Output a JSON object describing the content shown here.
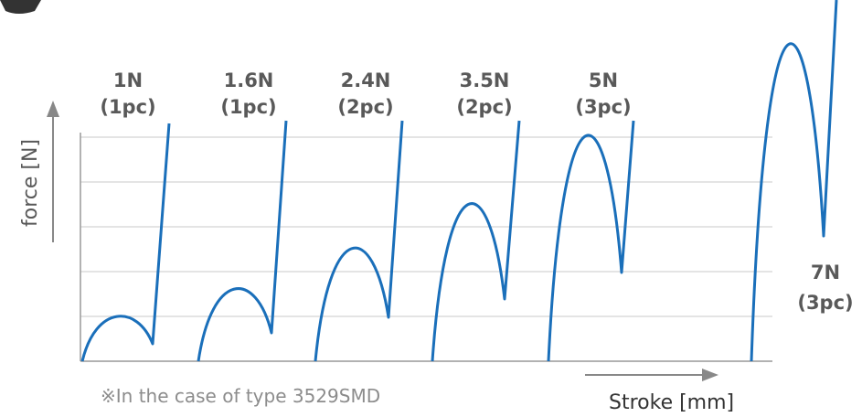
{
  "y_axis_label": "force [N]",
  "x_axis_label": "Stroke [mm]",
  "note": "※In the case of type 3529SMD",
  "curves": [
    {
      "force": "1N",
      "count": "(1pc)"
    },
    {
      "force": "1.6N",
      "count": "(1pc)"
    },
    {
      "force": "2.4N",
      "count": "(2pc)"
    },
    {
      "force": "3.5N",
      "count": "(2pc)"
    },
    {
      "force": "5N",
      "count": "(3pc)"
    },
    {
      "force": "7N",
      "count": "(3pc)"
    }
  ]
}
